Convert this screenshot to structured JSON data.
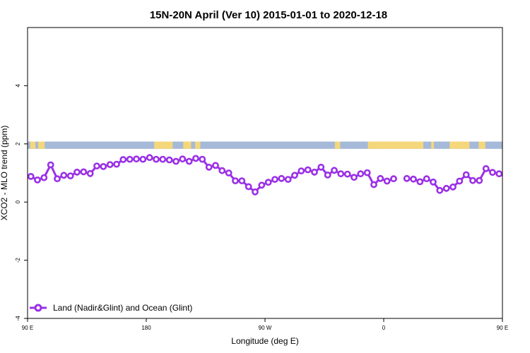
{
  "chart_data": {
    "type": "line",
    "title": "15N-20N April (Ver 10)   2015-01-01 to 2020-12-18",
    "xlabel": "Longitude (deg E)",
    "ylabel": "XCO2 - MLO trend (ppm)",
    "xlim": [
      90,
      450
    ],
    "ylim": [
      -4,
      6
    ],
    "x_ticks": [
      {
        "value": 90,
        "label": "90 E"
      },
      {
        "value": 180,
        "label": "180"
      },
      {
        "value": 270,
        "label": "90 W"
      },
      {
        "value": 360,
        "label": "0"
      },
      {
        "value": 450,
        "label": "90 E"
      },
      {
        "value": 540,
        "label": "180"
      }
    ],
    "y_ticks": [
      {
        "value": -4,
        "label": "-4"
      },
      {
        "value": -2,
        "label": "-2"
      },
      {
        "value": 0,
        "label": "0"
      },
      {
        "value": 2,
        "label": "2"
      },
      {
        "value": 4,
        "label": "4"
      }
    ],
    "colors": {
      "series": "#9b30e6",
      "ocean": "#a5b9d9",
      "land": "#f5d77b"
    },
    "background_band": {
      "ymin": 1.83,
      "ymax": 2.08
    },
    "land_segments_x": [
      [
        92,
        96
      ],
      [
        98,
        103
      ],
      [
        186,
        200
      ],
      [
        208,
        214
      ],
      [
        217,
        221
      ],
      [
        323,
        327
      ],
      [
        348,
        390
      ],
      [
        396,
        398
      ],
      [
        410,
        425
      ],
      [
        432,
        437
      ]
    ],
    "legend": {
      "position": "bottom-left",
      "label": "Land (Nadir&Glint) and Ocean (Glint)"
    },
    "series": [
      {
        "name": "Land (Nadir&Glint) and Ocean (Glint)",
        "points": [
          [
            92.5,
            0.88
          ],
          [
            97.5,
            0.76
          ],
          [
            102.5,
            0.84
          ],
          [
            107.5,
            1.28
          ],
          [
            112.5,
            0.8
          ],
          [
            117.5,
            0.92
          ],
          [
            122.5,
            0.9
          ],
          [
            127.5,
            1.03
          ],
          [
            132.5,
            1.04
          ],
          [
            137.5,
            0.98
          ],
          [
            142.5,
            1.24
          ],
          [
            147.5,
            1.22
          ],
          [
            152.5,
            1.29
          ],
          [
            157.5,
            1.3
          ],
          [
            162.5,
            1.46
          ],
          [
            167.5,
            1.47
          ],
          [
            172.5,
            1.48
          ],
          [
            177.5,
            1.47
          ],
          [
            182.5,
            1.53
          ],
          [
            187.5,
            1.47
          ],
          [
            192.5,
            1.47
          ],
          [
            197.5,
            1.45
          ],
          [
            202.5,
            1.4
          ],
          [
            207.5,
            1.48
          ],
          [
            212.5,
            1.4
          ],
          [
            217.5,
            1.5
          ],
          [
            222.5,
            1.47
          ],
          [
            227.5,
            1.2
          ],
          [
            232.5,
            1.26
          ],
          [
            237.5,
            1.08
          ],
          [
            242.5,
            1.0
          ],
          [
            247.5,
            0.73
          ],
          [
            252.5,
            0.73
          ],
          [
            257.5,
            0.53
          ],
          [
            262.5,
            0.35
          ],
          [
            267.5,
            0.58
          ],
          [
            272.5,
            0.68
          ],
          [
            277.5,
            0.78
          ],
          [
            282.5,
            0.81
          ],
          [
            287.5,
            0.78
          ],
          [
            292.5,
            0.92
          ],
          [
            297.5,
            1.07
          ],
          [
            302.5,
            1.11
          ],
          [
            307.5,
            1.03
          ],
          [
            312.5,
            1.2
          ],
          [
            317.5,
            0.93
          ],
          [
            322.5,
            1.09
          ],
          [
            327.5,
            0.97
          ],
          [
            332.5,
            0.96
          ],
          [
            337.5,
            0.85
          ],
          [
            342.5,
            0.97
          ],
          [
            347.5,
            1.01
          ],
          [
            352.5,
            0.6
          ],
          [
            357.5,
            0.81
          ],
          [
            362.5,
            0.72
          ],
          [
            367.5,
            0.8
          ],
          null,
          [
            377.5,
            0.81
          ],
          [
            382.5,
            0.79
          ],
          [
            387.5,
            0.7
          ],
          [
            392.5,
            0.8
          ],
          [
            397.5,
            0.69
          ],
          [
            402.5,
            0.4
          ],
          [
            407.5,
            0.47
          ],
          [
            412.5,
            0.52
          ],
          [
            417.5,
            0.72
          ],
          [
            422.5,
            0.94
          ],
          [
            427.5,
            0.74
          ],
          [
            432.5,
            0.74
          ],
          [
            437.5,
            1.15
          ],
          [
            442.5,
            1.02
          ],
          [
            447.5,
            0.97
          ],
          [
            452.5,
            0.87
          ],
          [
            457.5,
            0.75
          ],
          [
            462.5,
            0.84
          ],
          [
            467.5,
            1.28
          ],
          [
            472.5,
            0.81
          ],
          [
            477.5,
            0.93
          ],
          [
            482.5,
            0.91
          ],
          [
            487.5,
            1.04
          ],
          [
            492.5,
            1.06
          ],
          [
            497.5,
            0.97
          ],
          [
            502.5,
            1.23
          ],
          [
            507.5,
            1.22
          ],
          [
            512.5,
            1.3
          ],
          [
            517.5,
            1.28
          ],
          [
            522.5,
            1.44
          ],
          [
            527.5,
            1.47
          ],
          [
            532.5,
            1.47
          ],
          [
            537.5,
            1.48
          ]
        ]
      }
    ]
  }
}
